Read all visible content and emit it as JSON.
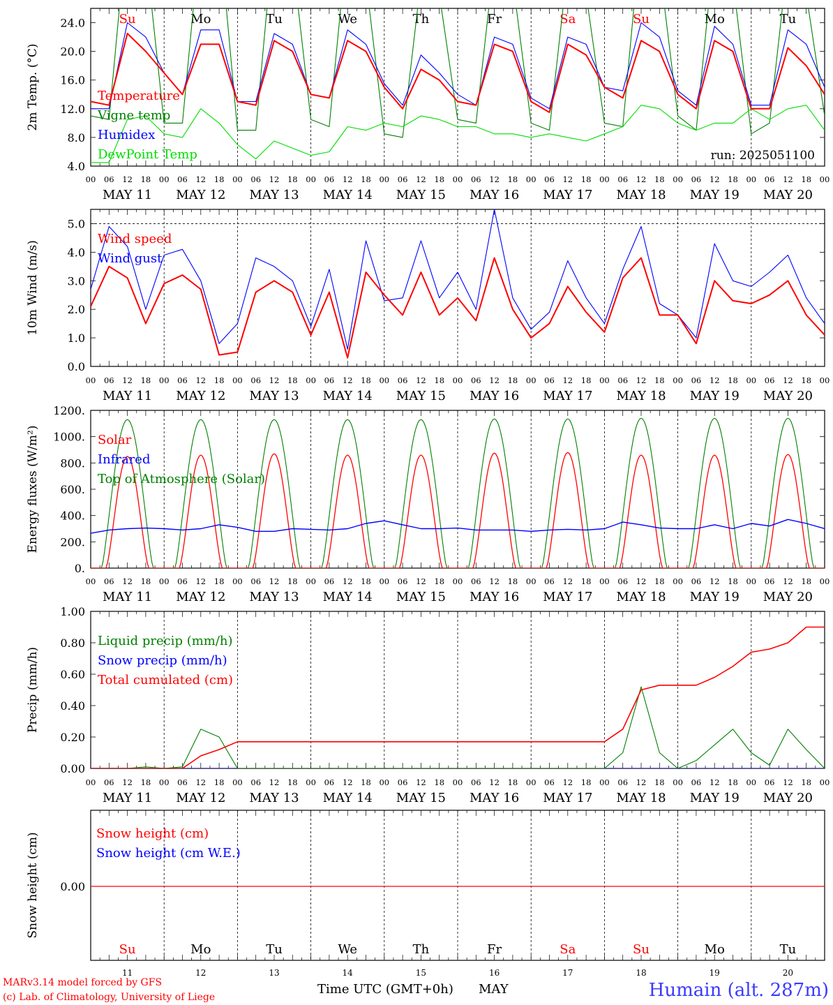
{
  "days": [
    {
      "abbr": "Su",
      "weekend": true,
      "date": "MAY 11",
      "num": "11"
    },
    {
      "abbr": "Mo",
      "weekend": false,
      "date": "MAY 12",
      "num": "12"
    },
    {
      "abbr": "Tu",
      "weekend": false,
      "date": "MAY 13",
      "num": "13"
    },
    {
      "abbr": "We",
      "weekend": false,
      "date": "MAY 14",
      "num": "14"
    },
    {
      "abbr": "Th",
      "weekend": false,
      "date": "MAY 15",
      "num": "15"
    },
    {
      "abbr": "Fr",
      "weekend": false,
      "date": "MAY 16",
      "num": "16"
    },
    {
      "abbr": "Sa",
      "weekend": true,
      "date": "MAY 17",
      "num": "17"
    },
    {
      "abbr": "Su",
      "weekend": true,
      "date": "MAY 18",
      "num": "18"
    },
    {
      "abbr": "Mo",
      "weekend": false,
      "date": "MAY 19",
      "num": "19"
    },
    {
      "abbr": "Tu",
      "weekend": false,
      "date": "MAY 20",
      "num": "20"
    }
  ],
  "hour_labels": [
    "00",
    "06",
    "12",
    "18"
  ],
  "colors": {
    "red": "#ff0000",
    "green": "#008000",
    "blue": "#0000ff",
    "lime": "#00dd00",
    "weekend": "#ff0000",
    "axis": "#000000"
  },
  "footer": {
    "credit1": "MARv3.14 model forced by GFS",
    "credit2": "(c) Lab. of Climatology, University of Liege",
    "xlabel": "Time UTC (GMT+0h)",
    "month": "MAY",
    "station": "Humain (alt. 287m)"
  },
  "chart_data": [
    {
      "type": "line",
      "ylabel": "2m Temp. (°C)",
      "ylim": [
        4,
        26
      ],
      "yticks": [
        "4.0",
        "8.0",
        "12.0",
        "16.0",
        "20.0",
        "24.0"
      ],
      "ytick_values": [
        4,
        8,
        12,
        16,
        20,
        24
      ],
      "annotation": "run: 2025051100",
      "x_hours": [
        0,
        6,
        12,
        18,
        24,
        30,
        36,
        42,
        48,
        54,
        60,
        66,
        72,
        78,
        84,
        90,
        96,
        102,
        108,
        114,
        120,
        126,
        132,
        138,
        144,
        150,
        156,
        162,
        168,
        174,
        180,
        186,
        192,
        198,
        204,
        210,
        216,
        222,
        228,
        234,
        240
      ],
      "series": [
        {
          "name": "Temperature",
          "color": "red",
          "values": [
            13,
            12.5,
            22.5,
            20,
            17,
            14,
            21,
            21,
            13,
            12.5,
            21.5,
            20,
            14,
            13.5,
            21.5,
            20,
            15,
            12,
            17.5,
            16,
            13,
            12.5,
            21,
            20,
            13,
            11.5,
            21,
            19.5,
            15,
            13.5,
            21.5,
            20,
            14,
            12,
            21.5,
            20,
            12,
            12,
            20.5,
            18,
            14
          ]
        },
        {
          "name": "Vigne temp",
          "color": "green",
          "values": [
            11,
            10.5,
            38,
            34,
            10,
            10,
            37,
            37,
            9,
            9,
            37,
            33,
            10.5,
            9.5,
            36,
            30,
            8.5,
            8,
            30,
            28,
            10.5,
            10,
            33,
            30,
            10,
            9,
            32,
            28,
            10,
            9.5,
            37,
            32,
            11,
            9,
            35,
            30,
            8.5,
            10,
            33,
            28,
            11
          ]
        },
        {
          "name": "Humidex",
          "color": "blue",
          "values": [
            12,
            12,
            24,
            22,
            17,
            14,
            23,
            23,
            13,
            13,
            22.5,
            21,
            14,
            13.5,
            23,
            21,
            15.5,
            12.5,
            19.5,
            17,
            14,
            12.5,
            22,
            21,
            13.5,
            12,
            22,
            21,
            15,
            14.5,
            24,
            22,
            14.5,
            12.5,
            23.5,
            21,
            12.5,
            12.5,
            23,
            21,
            15
          ]
        },
        {
          "name": "DewPoint Temp",
          "color": "lime",
          "values": [
            4.5,
            4.5,
            10.5,
            11,
            8.5,
            8,
            12,
            10,
            7,
            5,
            7.5,
            6.5,
            5.5,
            6,
            9.5,
            9,
            10,
            9.5,
            11,
            10.5,
            9.5,
            9.5,
            8.5,
            8.5,
            8,
            8.5,
            8,
            7.5,
            8.5,
            9.5,
            12.5,
            12,
            10,
            9,
            10,
            10,
            12,
            10.5,
            12,
            12.5,
            9
          ]
        }
      ]
    },
    {
      "type": "line",
      "ylabel": "10m Wind (m/s)",
      "ylim": [
        0,
        5.5
      ],
      "yticks": [
        "0.0",
        "1.0",
        "2.0",
        "3.0",
        "4.0",
        "5.0"
      ],
      "ytick_values": [
        0,
        1,
        2,
        3,
        4,
        5
      ],
      "dashed_level": 5,
      "x_hours": [
        0,
        6,
        12,
        18,
        24,
        30,
        36,
        42,
        48,
        54,
        60,
        66,
        72,
        78,
        84,
        90,
        96,
        102,
        108,
        114,
        120,
        126,
        132,
        138,
        144,
        150,
        156,
        162,
        168,
        174,
        180,
        186,
        192,
        198,
        204,
        210,
        216,
        222,
        228,
        234,
        240
      ],
      "series": [
        {
          "name": "Wind speed",
          "color": "red",
          "values": [
            2.1,
            3.5,
            3.1,
            1.5,
            2.9,
            3.2,
            2.7,
            0.4,
            0.5,
            2.6,
            3.0,
            2.6,
            1.1,
            2.6,
            0.3,
            3.3,
            2.5,
            1.8,
            3.3,
            1.8,
            2.4,
            1.6,
            3.8,
            2.0,
            1.0,
            1.5,
            2.8,
            1.9,
            1.2,
            3.1,
            3.8,
            1.8,
            1.8,
            0.8,
            3.0,
            2.3,
            2.2,
            2.5,
            3.0,
            1.8,
            1.1
          ]
        },
        {
          "name": "Wind gust",
          "color": "blue",
          "values": [
            2.7,
            4.9,
            4.2,
            2.0,
            3.9,
            4.1,
            3.0,
            0.8,
            1.5,
            3.8,
            3.5,
            3.0,
            1.4,
            3.4,
            0.6,
            4.4,
            2.3,
            2.4,
            4.4,
            2.4,
            3.3,
            2.0,
            5.5,
            2.4,
            1.3,
            1.9,
            3.7,
            2.4,
            1.5,
            3.4,
            4.9,
            2.2,
            1.8,
            1.0,
            4.3,
            3.0,
            2.8,
            3.3,
            3.9,
            2.4,
            1.5
          ]
        }
      ]
    },
    {
      "type": "line",
      "ylabel": "Energy fluxes (W/m²)",
      "ylim": [
        0,
        1200
      ],
      "yticks": [
        "0.",
        "200.",
        "400.",
        "600.",
        "800.",
        "1000.",
        "1200."
      ],
      "ytick_values": [
        0,
        200,
        400,
        600,
        800,
        1000,
        1200
      ],
      "day_peaks": {
        "Solar": [
          850,
          860,
          870,
          860,
          860,
          875,
          880,
          860,
          860,
          865
        ],
        "Top of Atmosphere (Solar)": [
          1130,
          1130,
          1130,
          1130,
          1130,
          1135,
          1135,
          1140,
          1140,
          1140
        ]
      },
      "series": [
        {
          "name": "Solar",
          "color": "red"
        },
        {
          "name": "Infrared",
          "color": "blue",
          "values": [
            265,
            290,
            300,
            305,
            300,
            290,
            300,
            330,
            310,
            280,
            280,
            300,
            295,
            290,
            300,
            340,
            360,
            330,
            300,
            300,
            305,
            290,
            290,
            290,
            280,
            290,
            295,
            290,
            300,
            350,
            330,
            305,
            300,
            300,
            330,
            300,
            340,
            320,
            370,
            340,
            300
          ]
        },
        {
          "name": "Top of Atmosphere (Solar)",
          "color": "green"
        }
      ]
    },
    {
      "type": "line",
      "ylabel": "Precip (mm/h)",
      "ylim": [
        0,
        1
      ],
      "yticks": [
        "0.00",
        "0.20",
        "0.40",
        "0.60",
        "0.80",
        "1.00"
      ],
      "ytick_values": [
        0,
        0.2,
        0.4,
        0.6,
        0.8,
        1
      ],
      "x_hours": [
        0,
        6,
        12,
        18,
        24,
        30,
        36,
        42,
        48,
        54,
        60,
        66,
        72,
        78,
        84,
        90,
        96,
        102,
        108,
        114,
        120,
        126,
        132,
        138,
        144,
        150,
        156,
        162,
        168,
        174,
        180,
        186,
        192,
        198,
        204,
        210,
        216,
        222,
        228,
        234,
        240
      ],
      "series": [
        {
          "name": "Liquid precip (mm/h)",
          "color": "green",
          "values": [
            0,
            0,
            0,
            0.01,
            0,
            0.01,
            0.25,
            0.2,
            0,
            0,
            0,
            0,
            0,
            0,
            0,
            0,
            0,
            0,
            0,
            0,
            0,
            0,
            0,
            0,
            0,
            0,
            0,
            0,
            0,
            0.1,
            0.52,
            0.1,
            0,
            0.05,
            0.15,
            0.25,
            0.1,
            0.02,
            0.25,
            0.12,
            0
          ]
        },
        {
          "name": "Snow precip (mm/h)",
          "color": "blue",
          "values": [
            0,
            0,
            0,
            0,
            0,
            0,
            0,
            0,
            0,
            0,
            0,
            0,
            0,
            0,
            0,
            0,
            0,
            0,
            0,
            0,
            0,
            0,
            0,
            0,
            0,
            0,
            0,
            0,
            0,
            0,
            0,
            0,
            0,
            0,
            0,
            0,
            0,
            0,
            0,
            0,
            0
          ]
        },
        {
          "name": "Total cumulated (cm)",
          "color": "red",
          "values": [
            0,
            0,
            0,
            0,
            0,
            0,
            0.08,
            0.12,
            0.17,
            0.17,
            0.17,
            0.17,
            0.17,
            0.17,
            0.17,
            0.17,
            0.17,
            0.17,
            0.17,
            0.17,
            0.17,
            0.17,
            0.17,
            0.17,
            0.17,
            0.17,
            0.17,
            0.17,
            0.17,
            0.25,
            0.5,
            0.53,
            0.53,
            0.53,
            0.58,
            0.65,
            0.74,
            0.76,
            0.8,
            0.9,
            0.9
          ]
        }
      ]
    },
    {
      "type": "line",
      "ylabel": "Snow height (cm)",
      "yticks": [
        "0.00"
      ],
      "ytick_values": [
        0
      ],
      "series": [
        {
          "name": "Snow height (cm)",
          "color": "red",
          "values": [
            0,
            0
          ]
        },
        {
          "name": "Snow height (cm W.E.)",
          "color": "blue",
          "values": [
            0,
            0
          ]
        }
      ]
    }
  ]
}
